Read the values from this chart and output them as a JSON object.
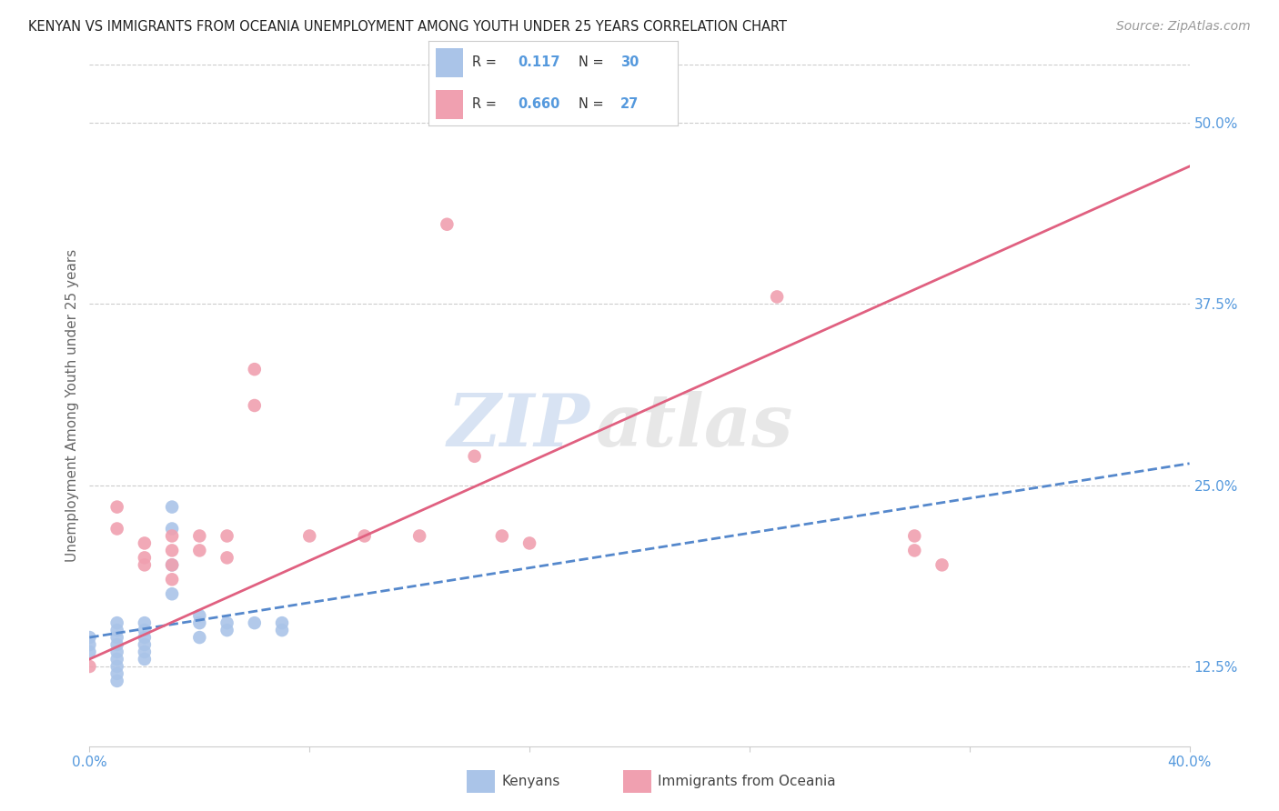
{
  "title": "KENYAN VS IMMIGRANTS FROM OCEANIA UNEMPLOYMENT AMONG YOUTH UNDER 25 YEARS CORRELATION CHART",
  "source": "Source: ZipAtlas.com",
  "ylabel": "Unemployment Among Youth under 25 years",
  "xlim": [
    0.0,
    0.4
  ],
  "ylim": [
    0.07,
    0.54
  ],
  "xticks": [
    0.0,
    0.08,
    0.16,
    0.24,
    0.32,
    0.4
  ],
  "yticks": [
    0.125,
    0.25,
    0.375,
    0.5
  ],
  "background_color": "#ffffff",
  "grid_color": "#cccccc",
  "kenyan_color": "#aac4e8",
  "oceania_color": "#f0a0b0",
  "kenyan_line_color": "#5588cc",
  "oceania_line_color": "#e06080",
  "kenyan_R": 0.117,
  "kenyan_N": 30,
  "oceania_R": 0.66,
  "oceania_N": 27,
  "kenyan_scatter_x": [
    0.0,
    0.0,
    0.0,
    0.01,
    0.01,
    0.01,
    0.01,
    0.01,
    0.01,
    0.01,
    0.01,
    0.01,
    0.02,
    0.02,
    0.02,
    0.02,
    0.02,
    0.02,
    0.03,
    0.03,
    0.03,
    0.03,
    0.04,
    0.04,
    0.04,
    0.05,
    0.05,
    0.06,
    0.07,
    0.07
  ],
  "kenyan_scatter_y": [
    0.145,
    0.14,
    0.135,
    0.155,
    0.15,
    0.145,
    0.14,
    0.135,
    0.13,
    0.125,
    0.12,
    0.115,
    0.155,
    0.15,
    0.145,
    0.14,
    0.135,
    0.13,
    0.235,
    0.22,
    0.195,
    0.175,
    0.16,
    0.155,
    0.145,
    0.155,
    0.15,
    0.155,
    0.155,
    0.15
  ],
  "oceania_scatter_x": [
    0.0,
    0.01,
    0.01,
    0.02,
    0.02,
    0.02,
    0.03,
    0.03,
    0.03,
    0.03,
    0.04,
    0.04,
    0.05,
    0.05,
    0.06,
    0.06,
    0.08,
    0.1,
    0.12,
    0.13,
    0.14,
    0.15,
    0.16,
    0.25,
    0.3,
    0.3,
    0.31
  ],
  "oceania_scatter_y": [
    0.125,
    0.235,
    0.22,
    0.21,
    0.2,
    0.195,
    0.215,
    0.205,
    0.195,
    0.185,
    0.215,
    0.205,
    0.215,
    0.2,
    0.33,
    0.305,
    0.215,
    0.215,
    0.215,
    0.43,
    0.27,
    0.215,
    0.21,
    0.38,
    0.215,
    0.205,
    0.195
  ],
  "kenyan_line_x0": 0.0,
  "kenyan_line_x1": 0.4,
  "kenyan_line_y0": 0.145,
  "kenyan_line_y1": 0.265,
  "oceania_line_x0": 0.0,
  "oceania_line_x1": 0.4,
  "oceania_line_y0": 0.13,
  "oceania_line_y1": 0.47,
  "watermark_zip": "ZIP",
  "watermark_atlas": "atlas",
  "legend_label_1": "Kenyans",
  "legend_label_2": "Immigrants from Oceania"
}
